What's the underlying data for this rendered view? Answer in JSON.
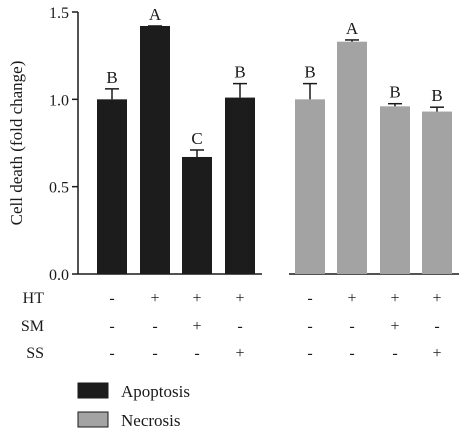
{
  "chart_data": {
    "type": "bar",
    "title": "",
    "xlabel": "",
    "ylabel": "Cell death (fold change)",
    "ylim": [
      0,
      1.5
    ],
    "yticks": [
      "0.0",
      "0.5",
      "1.0",
      "1.5"
    ],
    "yticks_values": [
      0,
      0.5,
      1.0,
      1.5
    ],
    "legend_position": "bottom-left",
    "groups": [
      {
        "name": "Apoptosis",
        "color": "#1c1c1c"
      },
      {
        "name": "Necrosis",
        "color": "#a3a3a3"
      }
    ],
    "conditions": [
      {
        "HT": "-",
        "SM": "-",
        "SS": "-"
      },
      {
        "HT": "+",
        "SM": "-",
        "SS": "-"
      },
      {
        "HT": "+",
        "SM": "+",
        "SS": "-"
      },
      {
        "HT": "+",
        "SM": "-",
        "SS": "+"
      }
    ],
    "row_labels": [
      "HT",
      "SM",
      "SS"
    ],
    "series": [
      {
        "name": "Apoptosis",
        "values": [
          1.0,
          1.42,
          0.67,
          1.01
        ],
        "errors": [
          0.06,
          0.0,
          0.04,
          0.08
        ],
        "letters": [
          "B",
          "A",
          "C",
          "B"
        ]
      },
      {
        "name": "Necrosis",
        "values": [
          1.0,
          1.33,
          0.96,
          0.93
        ],
        "errors": [
          0.09,
          0.01,
          0.015,
          0.025
        ],
        "letters": [
          "B",
          "A",
          "B",
          "B"
        ]
      }
    ]
  }
}
